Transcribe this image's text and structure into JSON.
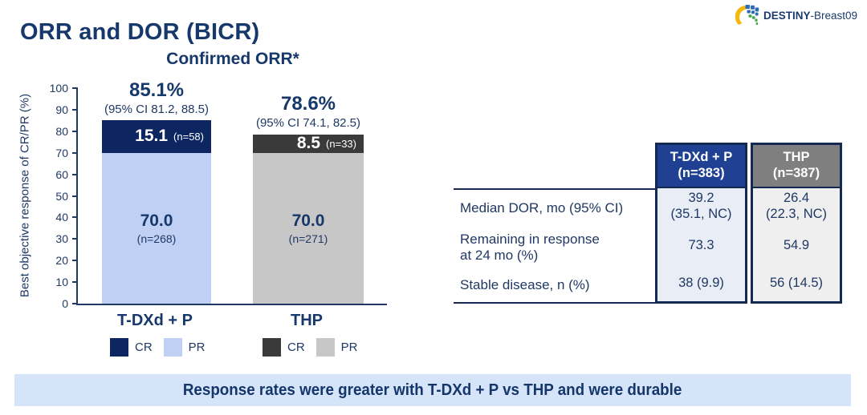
{
  "slide_title": "ORR and DOR (BICR)",
  "logo": {
    "name_bold": "DESTINY",
    "name_rest": "-Breast09"
  },
  "colors": {
    "title_navy": "#17386B",
    "cr_navy": "#0D2560",
    "pr_light_blue": "#BFD0F4",
    "cr_dark_gray": "#3A3A3A",
    "pr_light_gray": "#C7C7C7",
    "table_header_blue": "#1F4093",
    "table_header_gray": "#7F7F7F",
    "table_border_navy": "#152A52",
    "table_body_blue_tint": "#E9EDF6",
    "table_body_gray_tint": "#EFEFEF",
    "banner_bg": "#D5E4F8"
  },
  "chart_data": {
    "type": "bar",
    "stacked": true,
    "title": "Confirmed ORR*",
    "ylabel": "Best objective response of CR/PR (%)",
    "ylim": [
      0,
      100
    ],
    "y_ticks": [
      100,
      90,
      80,
      70,
      60,
      50,
      40,
      30,
      20,
      10,
      0
    ],
    "categories": [
      "T-DXd + P",
      "THP"
    ],
    "series": [
      {
        "name": "CR",
        "values": [
          15.1,
          8.5
        ]
      },
      {
        "name": "PR",
        "values": [
          70.0,
          70.0
        ]
      }
    ],
    "bars": [
      {
        "category": "T-DXd + P",
        "total_label": "85.1%",
        "ci_label": "(95% CI 81.2, 88.5)",
        "cr": {
          "value": 15.1,
          "label": "15.1",
          "n_label": "(n=58)"
        },
        "pr": {
          "value": 70.0,
          "label": "70.0",
          "n_label": "(n=268)"
        },
        "legend": {
          "cr": "CR",
          "pr": "PR"
        }
      },
      {
        "category": "THP",
        "total_label": "78.6%",
        "ci_label": "(95% CI 74.1, 82.5)",
        "cr": {
          "value": 8.5,
          "label": "8.5",
          "n_label": "(n=33)"
        },
        "pr": {
          "value": 70.0,
          "label": "70.0",
          "n_label": "(n=271)"
        },
        "legend": {
          "cr": "CR",
          "pr": "PR"
        }
      }
    ]
  },
  "table": {
    "headers": [
      {
        "line1": "T-DXd + P",
        "line2": "(n=383)"
      },
      {
        "line1": "THP",
        "line2": "(n=387)"
      }
    ],
    "rows": [
      {
        "label_line1": "Median DOR, mo (95% CI)",
        "label_line2": "",
        "tdxd_line1": "39.2",
        "tdxd_line2": "(35.1, NC)",
        "thp_line1": "26.4",
        "thp_line2": "(22.3, NC)"
      },
      {
        "label_line1": "Remaining in response",
        "label_line2": "at 24 mo (%)",
        "tdxd_line1": "73.3",
        "thp_line1": "54.9"
      },
      {
        "label_line1": "Stable disease, n (%)",
        "tdxd_line1": "38 (9.9)",
        "thp_line1": "56 (14.5)"
      }
    ]
  },
  "banner_text": "Response rates were greater with T-DXd + P vs THP and were durable"
}
